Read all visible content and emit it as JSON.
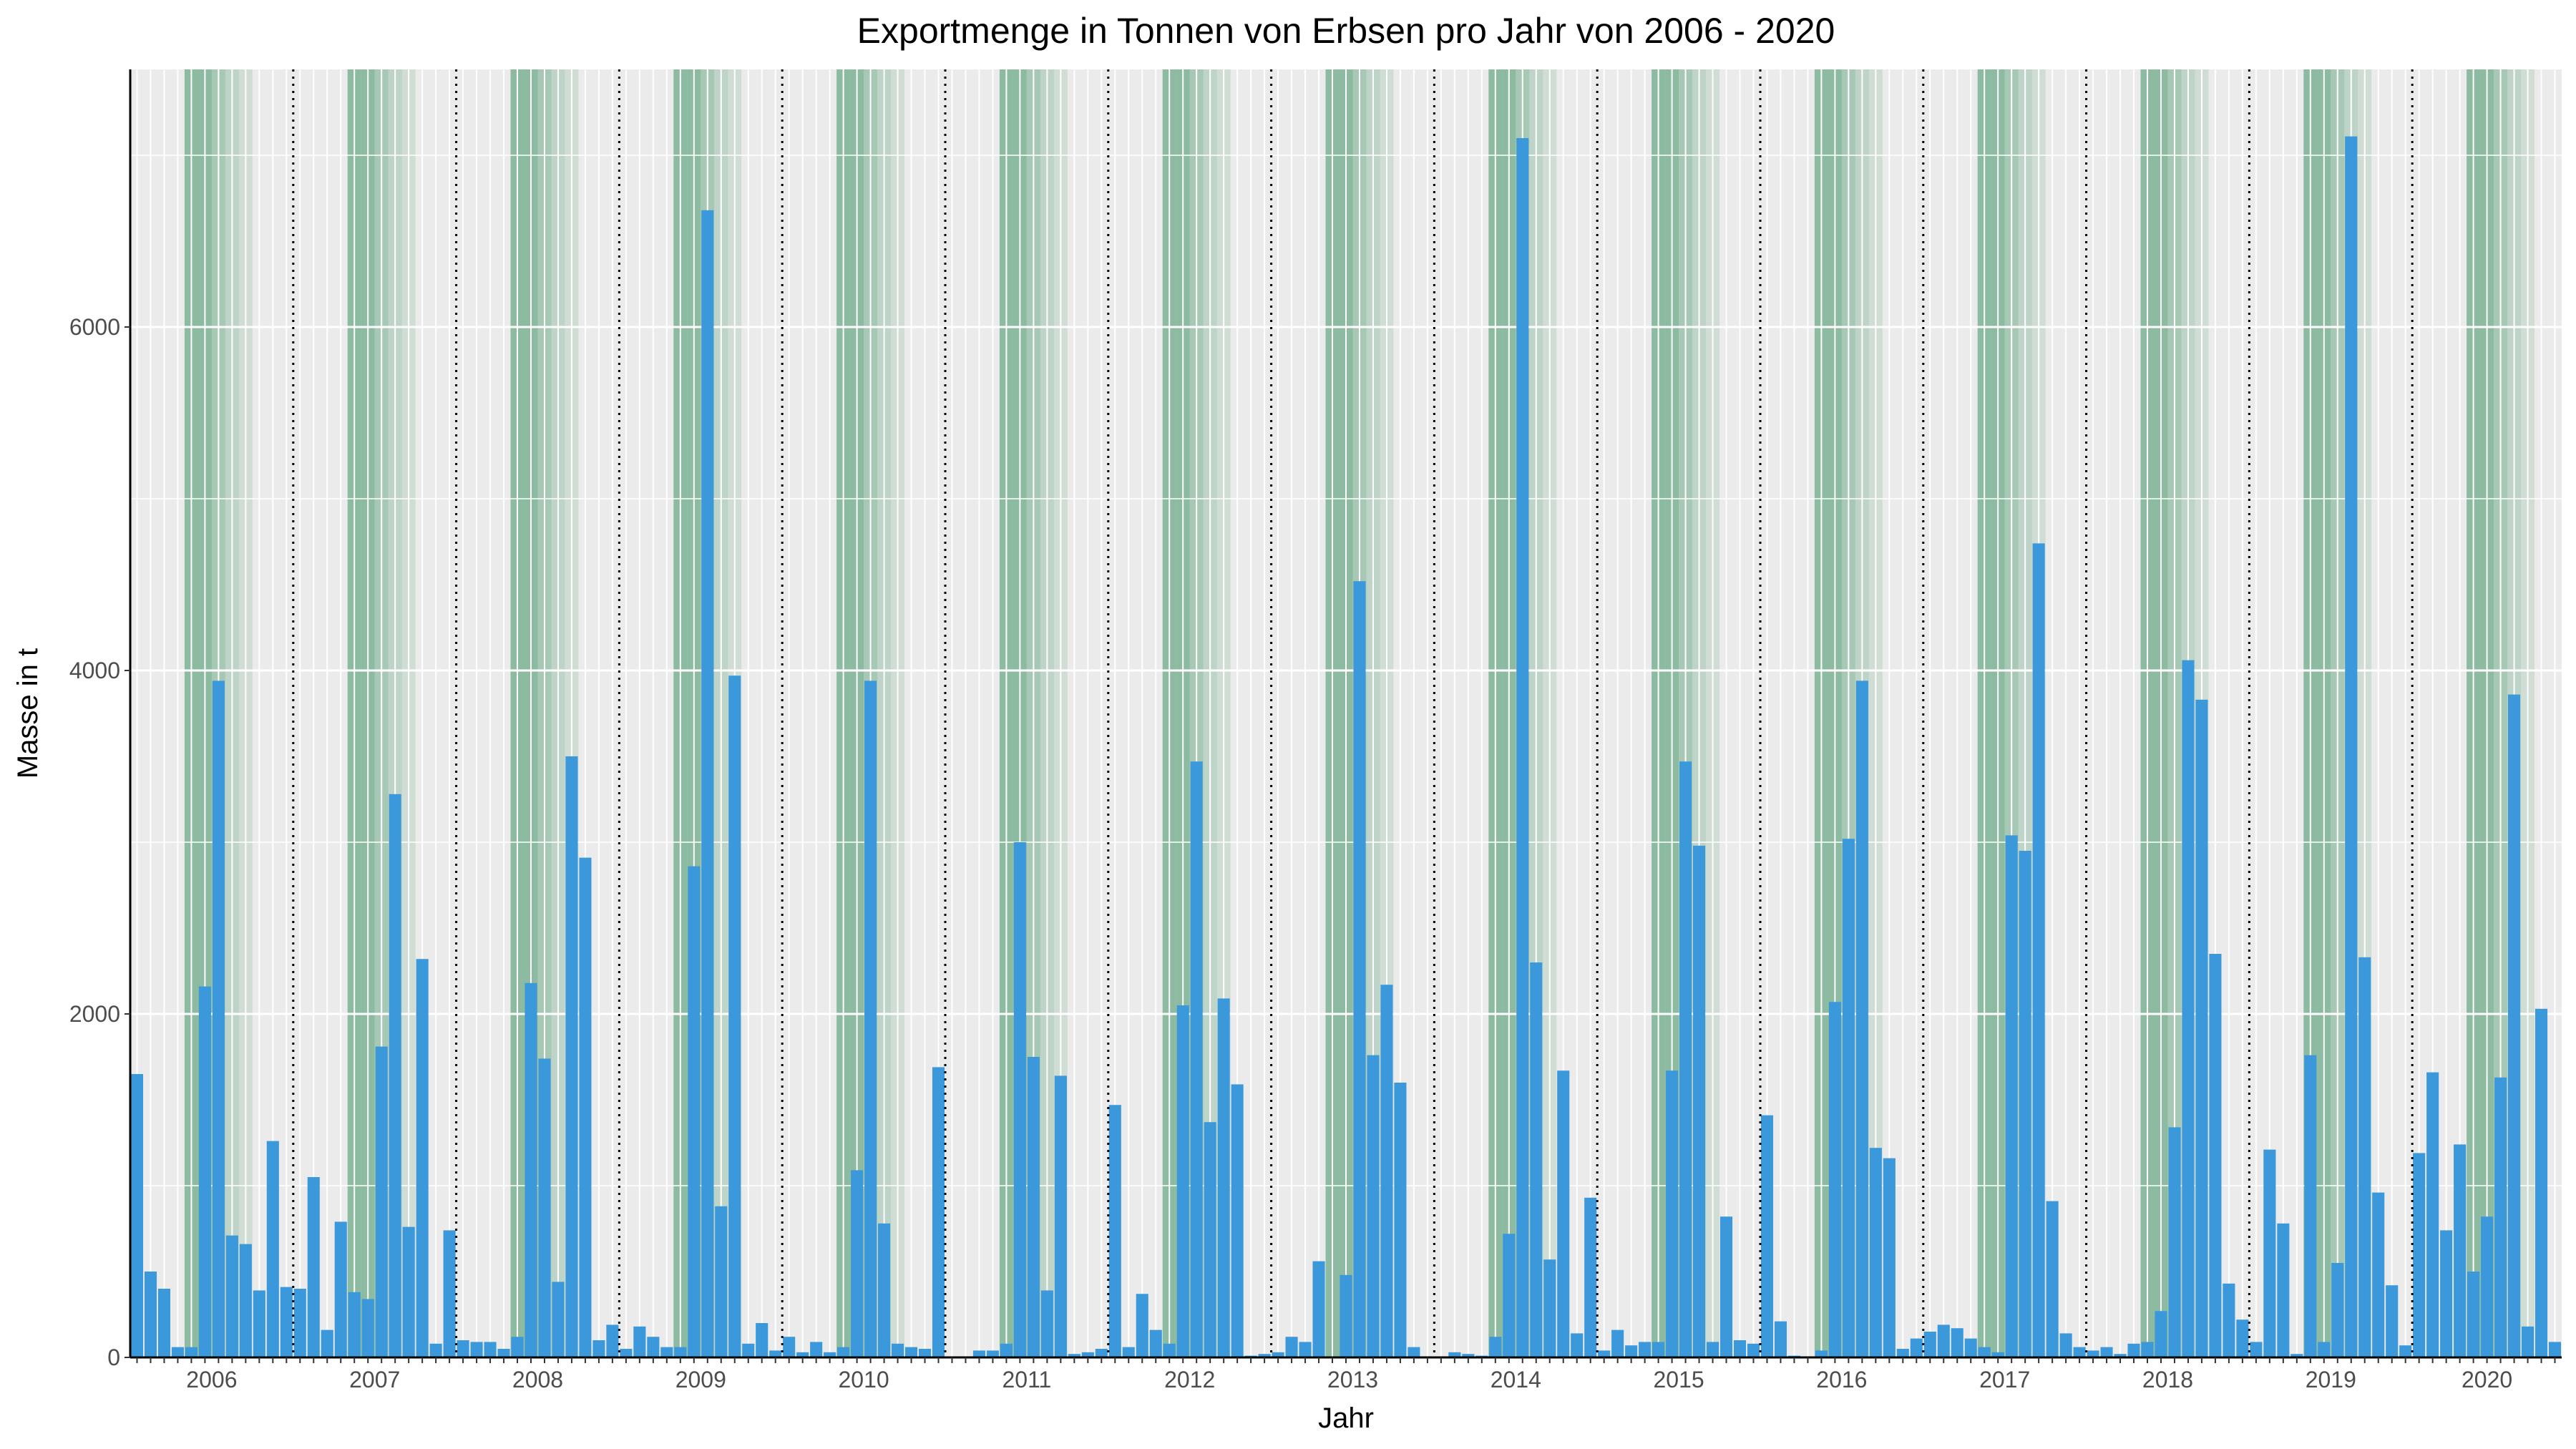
{
  "chart_data": {
    "type": "bar",
    "title": "Exportmenge in Tonnen von Erbsen pro Jahr von 2006 - 2020",
    "xlabel": "Jahr",
    "ylabel": "Masse in t",
    "ylim": [
      0,
      7500
    ],
    "y_ticks": [
      0,
      2000,
      4000,
      6000
    ],
    "grid": true,
    "legend": "none",
    "colors": {
      "bar": "#3a98db",
      "season": "#2e8b57",
      "panel": "#ebebeb",
      "gridline": "#ffffff"
    },
    "x_tick_labels": [
      "2006",
      "2007",
      "2008",
      "2009",
      "2010",
      "2011",
      "2012",
      "2013",
      "2014",
      "2015",
      "2016",
      "2017",
      "2018",
      "2019",
      "2020"
    ],
    "season_months": [
      5,
      6,
      7,
      8,
      9
    ],
    "x_start": "2006-01",
    "series": [
      {
        "values": [
          1650,
          500,
          400,
          60,
          60,
          2160,
          3940,
          710,
          660,
          390,
          1260,
          410,
          400,
          1050,
          160,
          790,
          380,
          340,
          1810,
          3280,
          760,
          2320,
          80,
          740,
          100,
          90,
          90,
          50,
          120,
          2180,
          1740,
          440,
          3500,
          2910,
          100,
          190,
          50,
          180,
          120,
          60,
          60,
          2860,
          6680,
          880,
          3970,
          80,
          200,
          40,
          120,
          30,
          90,
          30,
          60,
          1090,
          3940,
          780,
          80,
          60,
          50,
          1690,
          0,
          0,
          40,
          40,
          80,
          3000,
          1750,
          390,
          1640,
          20,
          30,
          50,
          1470,
          60,
          370,
          160,
          80,
          2050,
          3470,
          1370,
          2090,
          1590,
          10,
          20,
          30,
          120,
          90,
          560,
          0,
          480,
          4520,
          1760,
          2170,
          1600,
          60,
          0,
          0,
          30,
          20,
          10,
          120,
          720,
          7100,
          2300,
          570,
          1670,
          140,
          930,
          40,
          160,
          70,
          90,
          90,
          1670,
          3470,
          2980,
          90,
          820,
          100,
          80,
          1410,
          210,
          10,
          0,
          40,
          2070,
          3020,
          3940,
          1220,
          1160,
          50,
          110,
          150,
          190,
          170,
          110,
          60,
          30,
          3040,
          2950,
          4740,
          910,
          140,
          60,
          40,
          60,
          20,
          80,
          90,
          270,
          1340,
          4060,
          3830,
          2350,
          430,
          220,
          90,
          1210,
          780,
          20,
          1760,
          90,
          550,
          7110,
          2330,
          960,
          420,
          70,
          1190,
          1660,
          740,
          1240,
          500,
          820,
          1630,
          3860,
          180,
          2030,
          90
        ]
      }
    ]
  }
}
